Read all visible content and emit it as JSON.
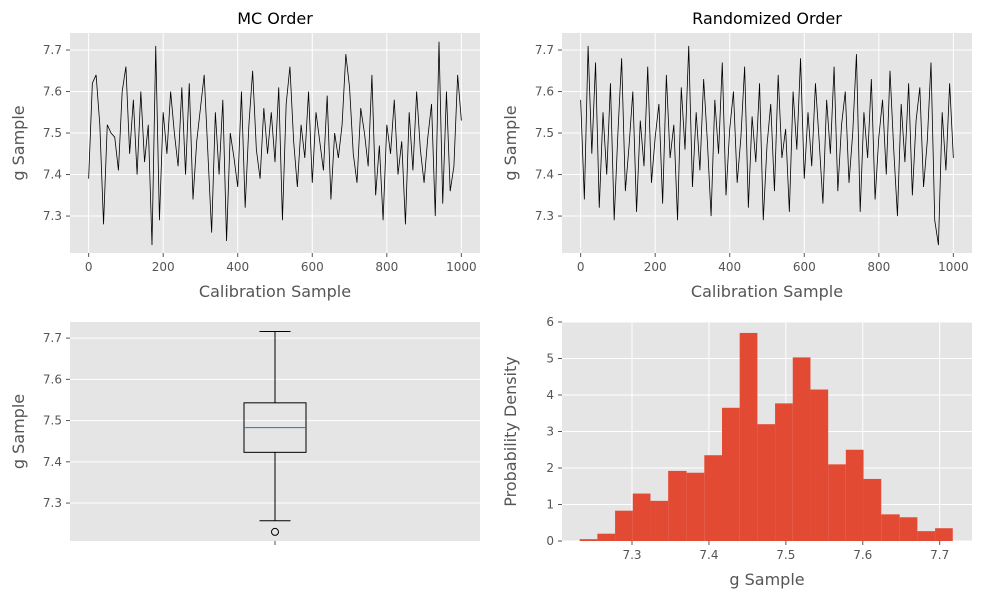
{
  "chart_data": [
    {
      "type": "line",
      "title": "MC Order",
      "xlabel": "Calibration Sample",
      "ylabel": "g Sample",
      "color": "#000000",
      "grid": true,
      "x": [
        0,
        10,
        20,
        30,
        40,
        50,
        60,
        70,
        80,
        90,
        100,
        110,
        120,
        130,
        140,
        150,
        160,
        170,
        180,
        190,
        200,
        210,
        220,
        230,
        240,
        250,
        260,
        270,
        280,
        290,
        300,
        310,
        320,
        330,
        340,
        350,
        360,
        370,
        380,
        390,
        400,
        410,
        420,
        430,
        440,
        450,
        460,
        470,
        480,
        490,
        500,
        510,
        520,
        530,
        540,
        550,
        560,
        570,
        580,
        590,
        600,
        610,
        620,
        630,
        640,
        650,
        660,
        670,
        680,
        690,
        700,
        710,
        720,
        730,
        740,
        750,
        760,
        770,
        780,
        790,
        800,
        810,
        820,
        830,
        840,
        850,
        860,
        870,
        880,
        890,
        900,
        910,
        920,
        930,
        940,
        950,
        960,
        970,
        980,
        990,
        1000
      ],
      "values": [
        7.39,
        7.62,
        7.64,
        7.52,
        7.28,
        7.52,
        7.5,
        7.49,
        7.41,
        7.6,
        7.66,
        7.45,
        7.58,
        7.4,
        7.6,
        7.43,
        7.52,
        7.23,
        7.71,
        7.29,
        7.55,
        7.45,
        7.6,
        7.5,
        7.42,
        7.61,
        7.4,
        7.62,
        7.34,
        7.48,
        7.56,
        7.64,
        7.45,
        7.26,
        7.55,
        7.4,
        7.58,
        7.24,
        7.5,
        7.44,
        7.37,
        7.6,
        7.32,
        7.52,
        7.65,
        7.46,
        7.39,
        7.56,
        7.45,
        7.55,
        7.43,
        7.61,
        7.29,
        7.57,
        7.66,
        7.48,
        7.37,
        7.52,
        7.44,
        7.6,
        7.38,
        7.55,
        7.48,
        7.41,
        7.59,
        7.34,
        7.5,
        7.44,
        7.52,
        7.69,
        7.61,
        7.45,
        7.38,
        7.56,
        7.5,
        7.42,
        7.64,
        7.35,
        7.47,
        7.29,
        7.52,
        7.45,
        7.58,
        7.4,
        7.48,
        7.28,
        7.55,
        7.41,
        7.6,
        7.46,
        7.38,
        7.49,
        7.57,
        7.3,
        7.72,
        7.33,
        7.6,
        7.36,
        7.42,
        7.64,
        7.53
      ],
      "xlim": [
        -50,
        1050
      ],
      "xticks": [
        0,
        200,
        400,
        600,
        800,
        1000
      ],
      "ylim": [
        7.211,
        7.741
      ],
      "yticks": [
        7.3,
        7.4,
        7.5,
        7.6,
        7.7
      ]
    },
    {
      "type": "line",
      "title": "Randomized Order",
      "xlabel": "Calibration Sample",
      "ylabel": "g Sample",
      "color": "#000000",
      "grid": true,
      "x": [
        0,
        10,
        20,
        30,
        40,
        50,
        60,
        70,
        80,
        90,
        100,
        110,
        120,
        130,
        140,
        150,
        160,
        170,
        180,
        190,
        200,
        210,
        220,
        230,
        240,
        250,
        260,
        270,
        280,
        290,
        300,
        310,
        320,
        330,
        340,
        350,
        360,
        370,
        380,
        390,
        400,
        410,
        420,
        430,
        440,
        450,
        460,
        470,
        480,
        490,
        500,
        510,
        520,
        530,
        540,
        550,
        560,
        570,
        580,
        590,
        600,
        610,
        620,
        630,
        640,
        650,
        660,
        670,
        680,
        690,
        700,
        710,
        720,
        730,
        740,
        750,
        760,
        770,
        780,
        790,
        800,
        810,
        820,
        830,
        840,
        850,
        860,
        870,
        880,
        890,
        900,
        910,
        920,
        930,
        940,
        950,
        960,
        970,
        980,
        990,
        1000
      ],
      "values": [
        7.58,
        7.34,
        7.71,
        7.45,
        7.67,
        7.32,
        7.55,
        7.4,
        7.62,
        7.29,
        7.5,
        7.68,
        7.36,
        7.47,
        7.6,
        7.31,
        7.53,
        7.42,
        7.66,
        7.38,
        7.49,
        7.57,
        7.33,
        7.64,
        7.44,
        7.52,
        7.29,
        7.61,
        7.46,
        7.71,
        7.37,
        7.55,
        7.41,
        7.63,
        7.48,
        7.3,
        7.58,
        7.45,
        7.67,
        7.35,
        7.51,
        7.6,
        7.38,
        7.49,
        7.66,
        7.32,
        7.54,
        7.43,
        7.62,
        7.29,
        7.47,
        7.57,
        7.36,
        7.64,
        7.44,
        7.51,
        7.31,
        7.6,
        7.46,
        7.68,
        7.39,
        7.55,
        7.42,
        7.62,
        7.48,
        7.33,
        7.58,
        7.45,
        7.66,
        7.36,
        7.52,
        7.6,
        7.38,
        7.5,
        7.69,
        7.31,
        7.55,
        7.44,
        7.63,
        7.34,
        7.49,
        7.58,
        7.4,
        7.65,
        7.46,
        7.3,
        7.57,
        7.43,
        7.62,
        7.35,
        7.53,
        7.61,
        7.37,
        7.48,
        7.67,
        7.29,
        7.23,
        7.55,
        7.41,
        7.62,
        7.44
      ],
      "xlim": [
        -50,
        1050
      ],
      "xticks": [
        0,
        200,
        400,
        600,
        800,
        1000
      ],
      "ylim": [
        7.211,
        7.741
      ],
      "yticks": [
        7.3,
        7.4,
        7.5,
        7.6,
        7.7
      ]
    },
    {
      "type": "box",
      "ylabel": "g Sample",
      "categories": [
        null
      ],
      "grid": true,
      "color": "#000000",
      "median_color": "#1f77b4",
      "whislo": 7.257,
      "q1": 7.423,
      "med": 7.483,
      "q3": 7.543,
      "whishi": 7.716,
      "fliers": [
        7.23
      ],
      "ylim": [
        7.208,
        7.739
      ],
      "yticks": [
        7.3,
        7.4,
        7.5,
        7.6,
        7.7
      ]
    },
    {
      "type": "histogram",
      "xlabel": "g Sample",
      "ylabel": "Probability Density",
      "color": "#e24a33",
      "grid": true,
      "bins": [
        7.232,
        7.255,
        7.278,
        7.301,
        7.324,
        7.347,
        7.371,
        7.394,
        7.417,
        7.44,
        7.463,
        7.486,
        7.509,
        7.532,
        7.555,
        7.578,
        7.601,
        7.624,
        7.648,
        7.671,
        7.694,
        7.717
      ],
      "values": [
        0.05,
        0.2,
        0.83,
        1.3,
        1.1,
        1.92,
        1.87,
        2.35,
        3.65,
        5.7,
        3.2,
        3.77,
        5.03,
        4.15,
        2.1,
        2.5,
        1.7,
        0.73,
        0.65,
        0.27,
        0.35
      ],
      "xlim": [
        7.209,
        7.742
      ],
      "xticks": [
        7.3,
        7.4,
        7.5,
        7.6,
        7.7
      ],
      "ylim": [
        0,
        6
      ],
      "yticks": [
        0,
        1,
        2,
        3,
        4,
        5,
        6
      ]
    }
  ]
}
